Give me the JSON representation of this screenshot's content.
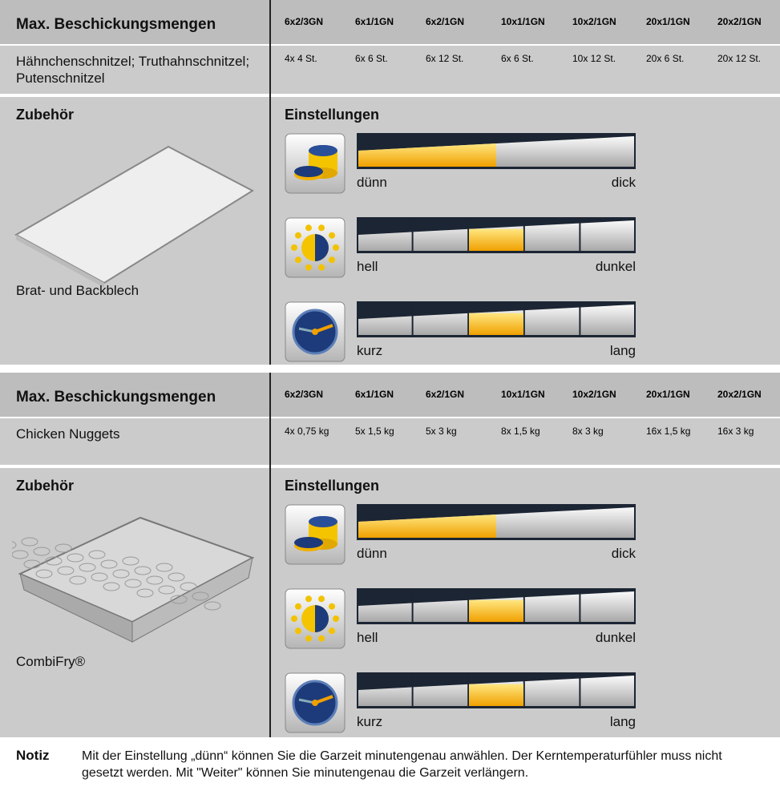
{
  "blocks": [
    {
      "capacity": {
        "title": "Max. Beschickungsmengen",
        "columns": [
          "6x2/3GN",
          "6x1/1GN",
          "6x2/1GN",
          "10x1/1GN",
          "10x2/1GN",
          "20x1/1GN",
          "20x2/1GN"
        ],
        "item": "Hähnchenschnitzel; Truthahnschnitzel; Putenschnitzel",
        "amounts": [
          "4x 4 St.",
          "6x 6 St.",
          "6x 12 St.",
          "6x 6 St.",
          "10x 12 St.",
          "20x 6 St.",
          "20x 12 St."
        ]
      },
      "accessory": {
        "title": "Zubehör",
        "label": "Brat- und Backblech"
      },
      "settings": {
        "title": "Einstellungen",
        "sliders": [
          {
            "left": "dünn",
            "right": "dick"
          },
          {
            "left": "hell",
            "right": "dunkel"
          },
          {
            "left": "kurz",
            "right": "lang"
          }
        ]
      }
    },
    {
      "capacity": {
        "title": "Max. Beschickungsmengen",
        "columns": [
          "6x2/3GN",
          "6x1/1GN",
          "6x2/1GN",
          "10x1/1GN",
          "10x2/1GN",
          "20x1/1GN",
          "20x2/1GN"
        ],
        "item": "Chicken Nuggets",
        "amounts": [
          "4x 0,75 kg",
          "5x 1,5 kg",
          "5x 3 kg",
          "8x 1,5 kg",
          "8x 3 kg",
          "16x 1,5 kg",
          "16x 3 kg"
        ]
      },
      "accessory": {
        "title": "Zubehör",
        "label": "CombiFry®"
      },
      "settings": {
        "title": "Einstellungen",
        "sliders": [
          {
            "left": "dünn",
            "right": "dick"
          },
          {
            "left": "hell",
            "right": "dunkel"
          },
          {
            "left": "kurz",
            "right": "lang"
          }
        ]
      }
    }
  ],
  "note": {
    "label": "Notiz",
    "text": "Mit der Einstellung „dünn“ können Sie die Garzeit minutengenau anwählen. Der Kerntemperaturfühler muss nicht gesetzt werden. Mit \"Weiter\" können Sie minutengenau die Garzeit verlängern."
  }
}
